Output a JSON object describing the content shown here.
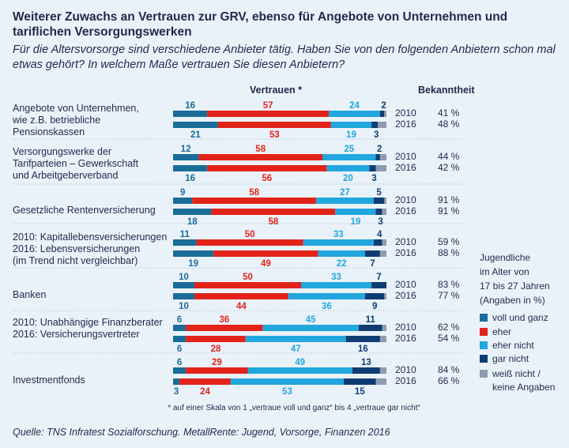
{
  "title": "Weiterer Zuwachs an Vertrauen zur GRV, ebenso für Angebote von Unternehmen und tariflichen Versorgungswerken",
  "subtitle": "Für die Altersvorsorge sind verschiedene Anbieter tätig. Haben Sie von den folgenden Anbietern schon mal etwas gehört? In welchem Maße vertrauen Sie diesen Anbietern?",
  "header_trust": "Vertrauen *",
  "header_awareness": "Bekanntheit",
  "footnote": "* auf einer Skala von 1 „vertraue voll und ganz“ bis 4 „vertraue gar nicht“",
  "source": "Quelle: TNS Infratest Sozialforschung. MetallRente: Jugend, Vorsorge, Finanzen 2016",
  "side_note": [
    "Jugendliche",
    "im Alter von",
    "17 bis 27 Jahren",
    "(Angaben in %)"
  ],
  "colors": {
    "voll_und_ganz": "#1a6c99",
    "eher": "#e2231a",
    "eher_nicht": "#22a6de",
    "gar_nicht": "#0f3c73",
    "weiss_nicht": "#8e9cb0"
  },
  "chart_data": {
    "type": "bar",
    "orientation": "horizontal",
    "stacked": true,
    "unit": "%",
    "legend": [
      {
        "key": "voll_und_ganz",
        "label": "voll und ganz"
      },
      {
        "key": "eher",
        "label": "eher"
      },
      {
        "key": "eher_nicht",
        "label": "eher nicht"
      },
      {
        "key": "gar_nicht",
        "label": "gar nicht"
      },
      {
        "key": "weiss_nicht",
        "label": "weiß nicht /",
        "label2": "keine Angaben"
      }
    ],
    "groups": [
      {
        "label": [
          "Angebote von Unternehmen,",
          "wie z.B. betriebliche",
          "Pensionskassen"
        ],
        "rows": [
          {
            "year": "2010",
            "values": [
              16,
              57,
              24,
              2,
              1
            ],
            "awareness": "41 %"
          },
          {
            "year": "2016",
            "values": [
              21,
              53,
              19,
              3,
              4
            ],
            "awareness": "48 %"
          }
        ]
      },
      {
        "label": [
          "Versorgungswerke der",
          "Tarifparteien – Gewerkschaft",
          "und Arbeitgeberverband"
        ],
        "rows": [
          {
            "year": "2010",
            "values": [
              12,
              58,
              25,
              2,
              3
            ],
            "awareness": "44 %"
          },
          {
            "year": "2016",
            "values": [
              16,
              56,
              20,
              3,
              5
            ],
            "awareness": "42 %"
          }
        ]
      },
      {
        "label": [
          "Gesetzliche Rentenversicherung"
        ],
        "rows": [
          {
            "year": "2010",
            "values": [
              9,
              58,
              27,
              5,
              1
            ],
            "awareness": "91 %"
          },
          {
            "year": "2016",
            "values": [
              18,
              58,
              19,
              3,
              2
            ],
            "awareness": "91 %"
          }
        ]
      },
      {
        "label": [
          "2010:  Kapitallebensversicherungen",
          "2016:  Lebensversicherungen",
          "           (im Trend nicht vergleichbar)"
        ],
        "rows": [
          {
            "year": "2010",
            "values": [
              11,
              50,
              33,
              4,
              2
            ],
            "awareness": "59 %"
          },
          {
            "year": "2016",
            "values": [
              19,
              49,
              22,
              7,
              3
            ],
            "awareness": "88 %"
          }
        ]
      },
      {
        "label": [
          "Banken"
        ],
        "rows": [
          {
            "year": "2010",
            "values": [
              10,
              50,
              33,
              7,
              0
            ],
            "awareness": "83 %"
          },
          {
            "year": "2016",
            "values": [
              10,
              44,
              36,
              9,
              1
            ],
            "awareness": "77 %"
          }
        ]
      },
      {
        "label": [
          "2010:  Unabhängige Finanzberater",
          "2016:  Versicherungsvertreter"
        ],
        "rows": [
          {
            "year": "2010",
            "values": [
              6,
              36,
              45,
              11,
              2
            ],
            "awareness": "62 %"
          },
          {
            "year": "2016",
            "values": [
              6,
              28,
              47,
              16,
              3
            ],
            "awareness": "54 %"
          }
        ]
      },
      {
        "label": [
          "Investmentfonds"
        ],
        "rows": [
          {
            "year": "2010",
            "values": [
              6,
              29,
              49,
              13,
              3
            ],
            "awareness": "84 %"
          },
          {
            "year": "2016",
            "values": [
              3,
              24,
              53,
              15,
              5
            ],
            "awareness": "66 %"
          }
        ]
      }
    ]
  }
}
